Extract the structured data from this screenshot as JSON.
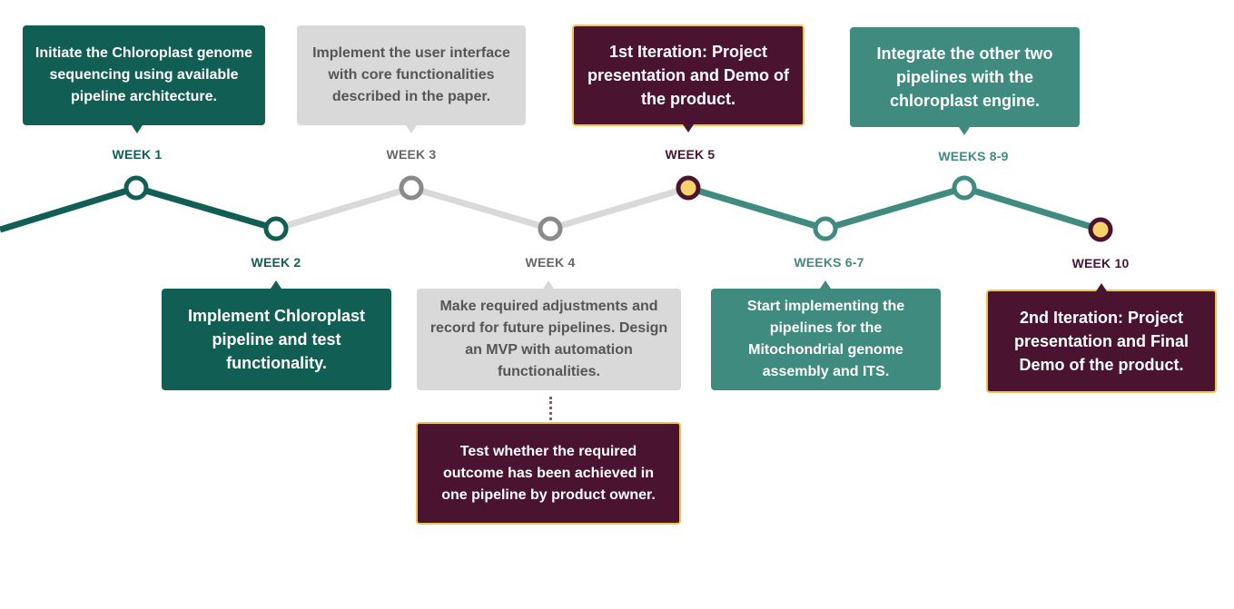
{
  "colors": {
    "dark_green": "#115e54",
    "gray": "#d9d9d9",
    "gray_node": "#8a8a8a",
    "teal": "#3f8b7f",
    "maroon": "#4a1430",
    "gold": "#f2c34e",
    "gold_fill": "#f7d26a"
  },
  "weeks": [
    {
      "label": "WEEK 1"
    },
    {
      "label": "WEEK 2"
    },
    {
      "label": "WEEK 3"
    },
    {
      "label": "WEEK 4"
    },
    {
      "label": "WEEK 5"
    },
    {
      "label": "WEEKS 6-7"
    },
    {
      "label": "WEEKS 8-9"
    },
    {
      "label": "WEEK 10"
    }
  ],
  "boxes": [
    {
      "text": "Initiate the Chloroplast genome sequencing using available pipeline architecture."
    },
    {
      "text": "Implement Chloroplast pipeline and test functionality."
    },
    {
      "text": "Implement the user interface with core functionalities described in the paper."
    },
    {
      "text": "Make required adjustments and record for future pipelines. Design an MVP with automation functionalities."
    },
    {
      "text": "1st Iteration: Project presentation and Demo of the product."
    },
    {
      "text": "Start implementing the pipelines for the Mitochondrial genome assembly and ITS."
    },
    {
      "text": "Integrate the other two pipelines with the chloroplast engine."
    },
    {
      "text": "2nd Iteration: Project presentation and Final Demo of the product."
    },
    {
      "text": "Test whether the required outcome has been achieved in one pipeline by product owner."
    }
  ]
}
